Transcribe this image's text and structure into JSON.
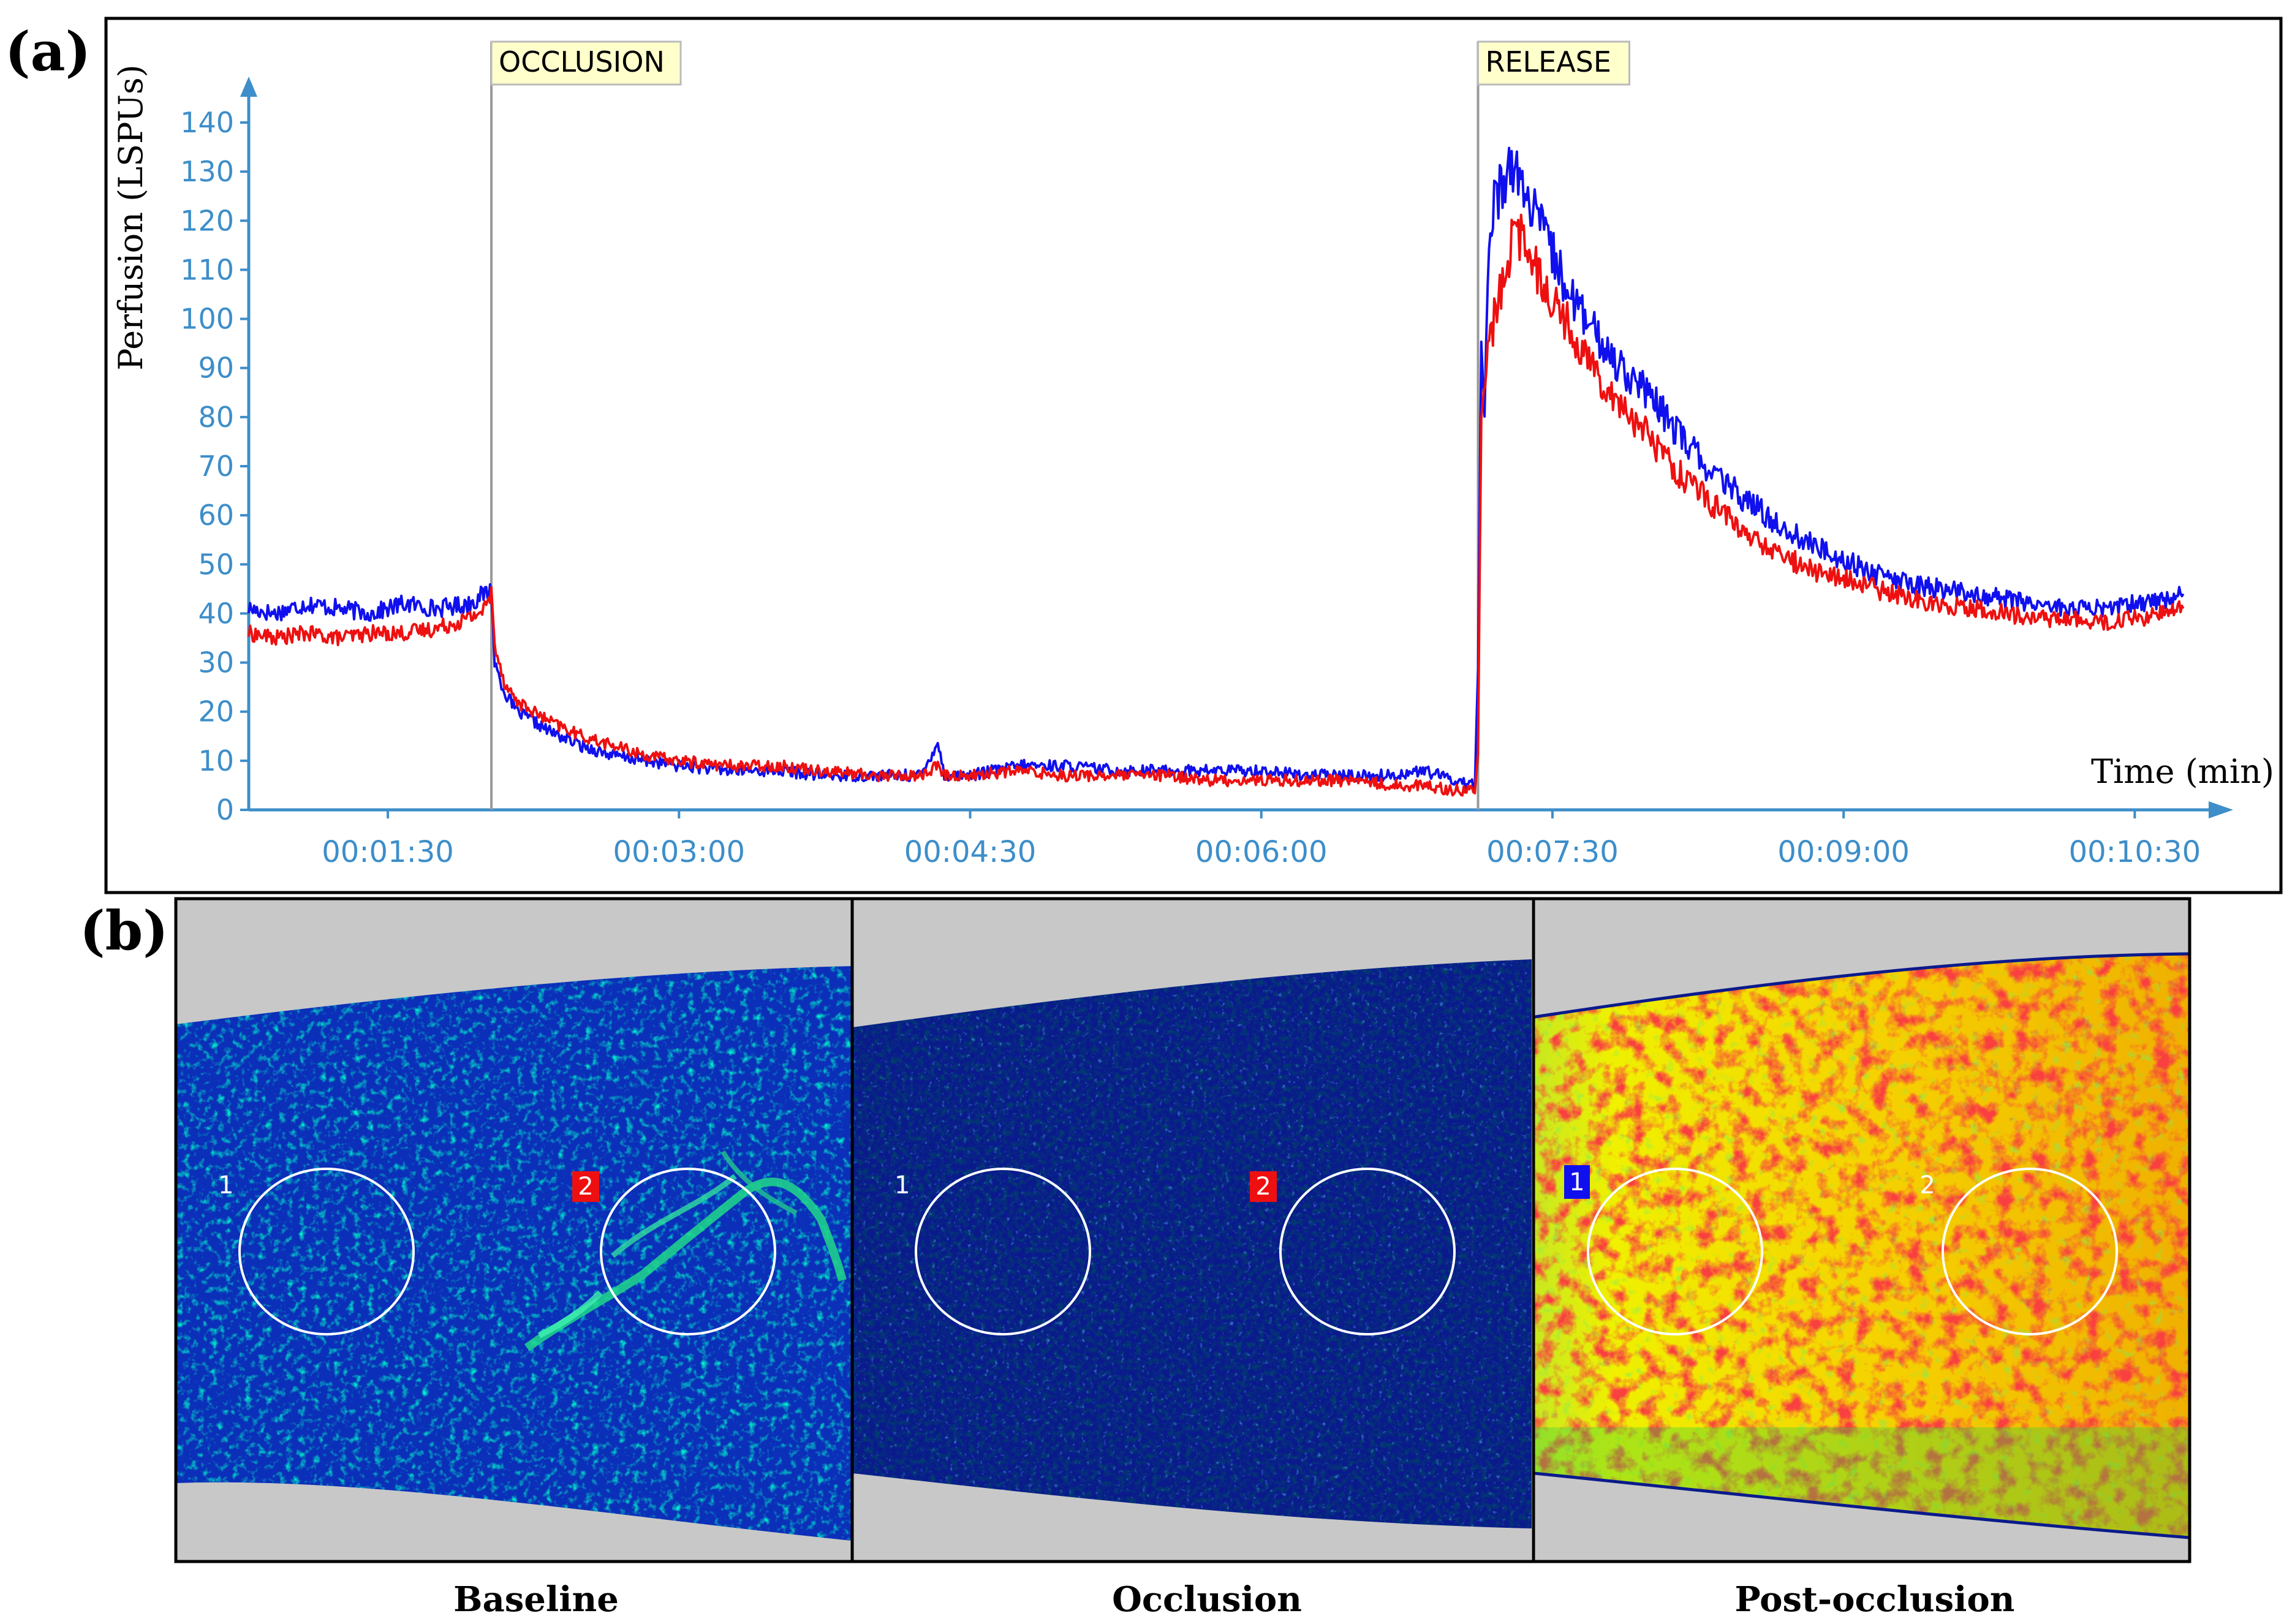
{
  "panels": {
    "a_label": "(a)",
    "b_label": "(b)"
  },
  "chart_data": {
    "type": "line",
    "xlabel": "Time (min)",
    "ylabel": "Perfusion (LSPUs)",
    "ylim": [
      0,
      140
    ],
    "xlim_seconds": [
      47,
      650
    ],
    "y_ticks": [
      0,
      10,
      20,
      30,
      40,
      50,
      60,
      70,
      80,
      90,
      100,
      110,
      120,
      130,
      140
    ],
    "x_ticks": [
      {
        "t": 90,
        "label": "00:01:30"
      },
      {
        "t": 180,
        "label": "00:03:00"
      },
      {
        "t": 270,
        "label": "00:04:30"
      },
      {
        "t": 360,
        "label": "00:06:00"
      },
      {
        "t": 450,
        "label": "00:07:30"
      },
      {
        "t": 540,
        "label": "00:09:00"
      },
      {
        "t": 630,
        "label": "00:10:30"
      }
    ],
    "events": [
      {
        "t": 122,
        "label": "OCCLUSION"
      },
      {
        "t": 427,
        "label": "RELEASE"
      }
    ],
    "series": [
      {
        "name": "ROI 1",
        "color": "#1010ee",
        "points": [
          [
            47,
            41
          ],
          [
            55,
            40
          ],
          [
            65,
            42
          ],
          [
            75,
            41
          ],
          [
            85,
            40
          ],
          [
            95,
            42
          ],
          [
            105,
            41
          ],
          [
            115,
            42
          ],
          [
            120,
            44
          ],
          [
            122,
            45
          ],
          [
            123,
            30
          ],
          [
            126,
            24
          ],
          [
            130,
            20
          ],
          [
            140,
            16
          ],
          [
            150,
            13
          ],
          [
            160,
            11
          ],
          [
            170,
            10
          ],
          [
            180,
            9
          ],
          [
            195,
            8
          ],
          [
            210,
            8
          ],
          [
            225,
            7
          ],
          [
            240,
            7
          ],
          [
            255,
            7
          ],
          [
            260,
            14
          ],
          [
            262,
            7
          ],
          [
            270,
            7
          ],
          [
            285,
            9
          ],
          [
            300,
            9
          ],
          [
            315,
            8
          ],
          [
            330,
            8
          ],
          [
            345,
            8
          ],
          [
            360,
            8
          ],
          [
            375,
            7
          ],
          [
            390,
            7
          ],
          [
            400,
            7
          ],
          [
            410,
            8
          ],
          [
            420,
            6
          ],
          [
            426,
            5
          ],
          [
            427,
            28
          ],
          [
            428,
            95
          ],
          [
            429,
            80
          ],
          [
            430,
            110
          ],
          [
            432,
            124
          ],
          [
            435,
            128
          ],
          [
            437,
            133
          ],
          [
            439,
            130
          ],
          [
            442,
            124
          ],
          [
            447,
            118
          ],
          [
            452,
            110
          ],
          [
            458,
            102
          ],
          [
            465,
            95
          ],
          [
            472,
            90
          ],
          [
            480,
            84
          ],
          [
            490,
            76
          ],
          [
            500,
            68
          ],
          [
            510,
            63
          ],
          [
            520,
            58
          ],
          [
            530,
            54
          ],
          [
            540,
            51
          ],
          [
            550,
            48
          ],
          [
            560,
            46
          ],
          [
            570,
            45
          ],
          [
            580,
            44
          ],
          [
            590,
            43
          ],
          [
            600,
            42
          ],
          [
            610,
            41
          ],
          [
            620,
            41
          ],
          [
            630,
            42
          ],
          [
            640,
            43
          ],
          [
            645,
            44
          ]
        ]
      },
      {
        "name": "ROI 2",
        "color": "#ee1010",
        "points": [
          [
            47,
            36
          ],
          [
            55,
            35
          ],
          [
            65,
            36
          ],
          [
            75,
            35
          ],
          [
            85,
            36
          ],
          [
            95,
            36
          ],
          [
            105,
            37
          ],
          [
            115,
            39
          ],
          [
            120,
            41
          ],
          [
            122,
            44
          ],
          [
            123,
            34
          ],
          [
            126,
            26
          ],
          [
            130,
            22
          ],
          [
            140,
            18
          ],
          [
            150,
            15
          ],
          [
            160,
            13
          ],
          [
            170,
            11
          ],
          [
            180,
            10
          ],
          [
            195,
            9
          ],
          [
            210,
            9
          ],
          [
            225,
            8
          ],
          [
            240,
            7
          ],
          [
            255,
            7
          ],
          [
            260,
            9
          ],
          [
            262,
            7
          ],
          [
            270,
            7
          ],
          [
            285,
            8
          ],
          [
            300,
            7
          ],
          [
            315,
            7
          ],
          [
            330,
            7
          ],
          [
            345,
            6
          ],
          [
            360,
            6
          ],
          [
            375,
            6
          ],
          [
            390,
            6
          ],
          [
            400,
            5
          ],
          [
            410,
            5
          ],
          [
            420,
            4
          ],
          [
            426,
            4
          ],
          [
            427,
            12
          ],
          [
            428,
            80
          ],
          [
            430,
            92
          ],
          [
            432,
            100
          ],
          [
            435,
            108
          ],
          [
            437,
            115
          ],
          [
            439,
            118
          ],
          [
            442,
            114
          ],
          [
            447,
            108
          ],
          [
            452,
            102
          ],
          [
            458,
            95
          ],
          [
            465,
            88
          ],
          [
            472,
            82
          ],
          [
            480,
            76
          ],
          [
            490,
            68
          ],
          [
            500,
            62
          ],
          [
            510,
            56
          ],
          [
            520,
            52
          ],
          [
            530,
            49
          ],
          [
            540,
            47
          ],
          [
            550,
            45
          ],
          [
            560,
            43
          ],
          [
            570,
            42
          ],
          [
            580,
            41
          ],
          [
            590,
            40
          ],
          [
            600,
            39
          ],
          [
            610,
            39
          ],
          [
            620,
            38
          ],
          [
            630,
            39
          ],
          [
            640,
            40
          ],
          [
            645,
            41
          ]
        ]
      }
    ]
  },
  "images": {
    "captions": [
      "Baseline",
      "Occlusion",
      "Post-occlusion"
    ],
    "roi_labels": [
      "1",
      "2"
    ]
  },
  "colors": {
    "roi1": "#1010ee",
    "roi2": "#ee1010",
    "axis": "#3d8ec9",
    "event_box": "#ffffcc"
  }
}
